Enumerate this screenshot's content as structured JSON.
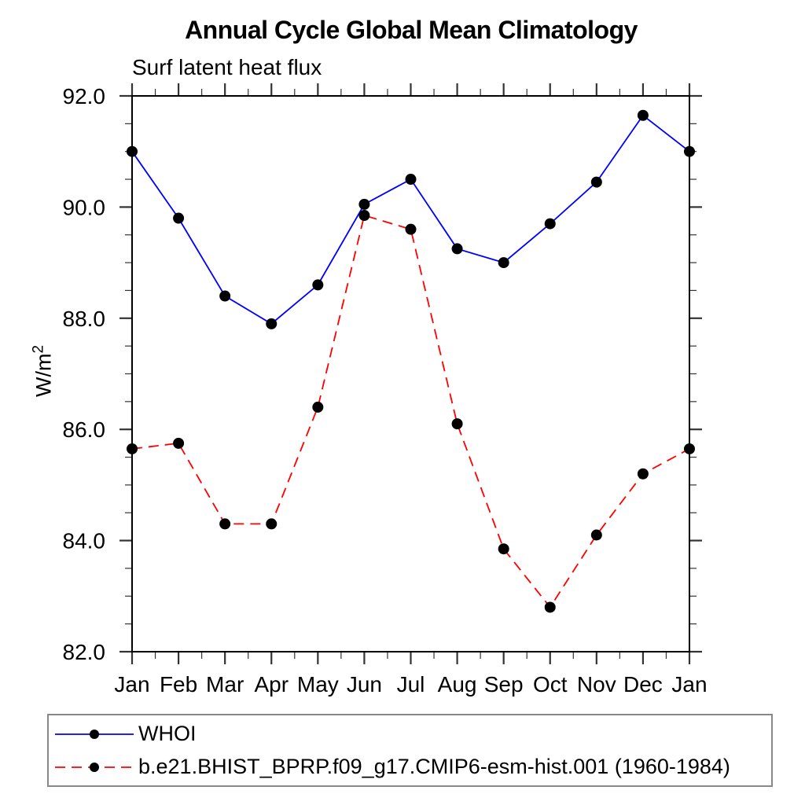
{
  "chart_data": {
    "type": "line",
    "title": "Annual Cycle Global Mean Climatology",
    "subtitle": "Surf latent heat flux",
    "ylabel": "W/m^2",
    "ylabel_base": "W/m",
    "ylabel_exponent": "2",
    "categories": [
      "Jan",
      "Feb",
      "Mar",
      "Apr",
      "May",
      "Jun",
      "Jul",
      "Aug",
      "Sep",
      "Oct",
      "Nov",
      "Dec",
      "Jan"
    ],
    "ylim": [
      82.0,
      92.0
    ],
    "yticks": [
      82.0,
      84.0,
      86.0,
      88.0,
      90.0,
      92.0
    ],
    "ytick_labels": [
      "82.0",
      "84.0",
      "86.0",
      "88.0",
      "90.0",
      "92.0"
    ],
    "minor_ticks": {
      "y_step": 0.5,
      "x": "midpoints-between-months"
    },
    "grid": false,
    "legend_position": "bottom-left-box",
    "series": [
      {
        "name": "WHOI",
        "line_color": "#0000ff",
        "line_style": "solid",
        "marker": "filled-circle",
        "marker_color": "#000000",
        "values": [
          91.0,
          89.8,
          88.4,
          87.9,
          88.6,
          90.05,
          90.5,
          89.25,
          89.0,
          89.7,
          90.45,
          91.65,
          91.0
        ]
      },
      {
        "name": "b.e21.BHIST_BPRP.f09_g17.CMIP6-esm-hist.001 (1960-1984)",
        "line_color": "#ff0000",
        "line_style": "dashed",
        "marker": "filled-circle",
        "marker_color": "#000000",
        "values": [
          85.65,
          85.75,
          84.3,
          84.3,
          86.4,
          89.85,
          89.6,
          86.1,
          83.85,
          82.8,
          84.1,
          85.2,
          85.65
        ]
      }
    ]
  }
}
